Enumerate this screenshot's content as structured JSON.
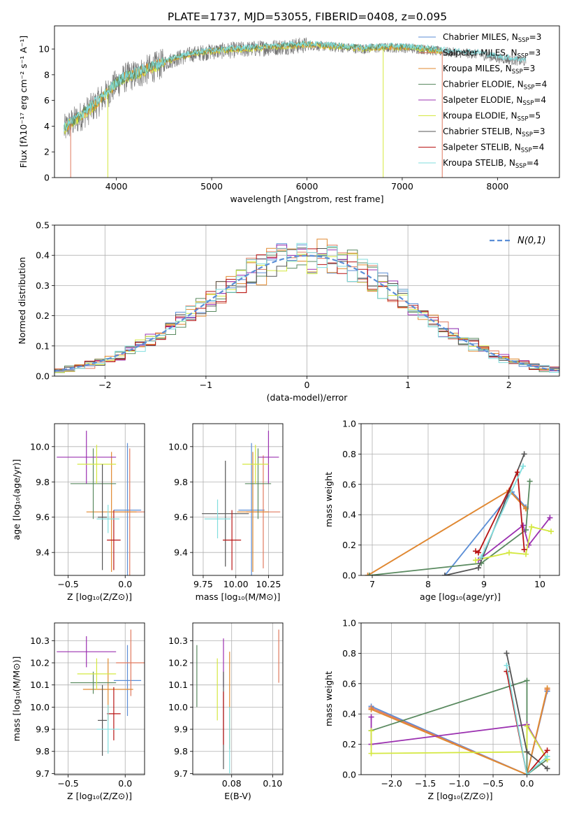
{
  "title": "PLATE=1737, MJD=53055, FIBERID=0408, z=0.095",
  "colors": {
    "Chabrier MILES": "#5b8ed6",
    "Salpeter MILES": "#e07a5f",
    "Kroupa MILES": "#e08a30",
    "Chabrier ELODIE": "#5a8a60",
    "Salpeter ELODIE": "#9b30b0",
    "Kroupa ELODIE": "#d4e840",
    "Chabrier STELIB": "#555555",
    "Salpeter STELIB": "#b81414",
    "Kroupa STELIB": "#80dede"
  },
  "legend_entries": [
    {
      "name": "Chabrier MILES",
      "label": "Chabrier MILES, N",
      "sub": "SSP",
      "n": "=3"
    },
    {
      "name": "Salpeter MILES",
      "label": "Salpeter MILES, N",
      "sub": "SSP",
      "n": "=3"
    },
    {
      "name": "Kroupa MILES",
      "label": "Kroupa MILES, N",
      "sub": "SSP",
      "n": "=3"
    },
    {
      "name": "Chabrier ELODIE",
      "label": "Chabrier ELODIE, N",
      "sub": "SSP",
      "n": "=4"
    },
    {
      "name": "Salpeter ELODIE",
      "label": "Salpeter ELODIE, N",
      "sub": "SSP",
      "n": "=4"
    },
    {
      "name": "Kroupa ELODIE",
      "label": "Kroupa ELODIE, N",
      "sub": "SSP",
      "n": "=5"
    },
    {
      "name": "Chabrier STELIB",
      "label": "Chabrier STELIB, N",
      "sub": "SSP",
      "n": "=3"
    },
    {
      "name": "Salpeter STELIB",
      "label": "Salpeter STELIB, N",
      "sub": "SSP",
      "n": "=4"
    },
    {
      "name": "Kroupa STELIB",
      "label": "Kroupa STELIB, N",
      "sub": "SSP",
      "n": "=4"
    }
  ],
  "chart_data": [
    {
      "id": "spectrum",
      "type": "line",
      "xlabel": "wavelength [Angstrom, rest frame]",
      "ylabel": "Flux [fλ10⁻¹⁷ erg cm⁻² s⁻¹ A⁻¹]",
      "xlim": [
        3350,
        8650
      ],
      "ylim": [
        0,
        11.8
      ],
      "xticks": [
        4000,
        5000,
        6000,
        7000,
        8000
      ],
      "yticks": [
        0,
        2,
        4,
        6,
        8,
        10
      ],
      "continuum_x": [
        3450,
        3500,
        3600,
        3700,
        3800,
        3900,
        4000,
        4100,
        4200,
        4400,
        4600,
        4800,
        5000,
        5200,
        5400,
        5600,
        5800,
        6000,
        6200,
        6400,
        6600,
        6800,
        7000,
        7200,
        7400,
        7600,
        7800,
        8000,
        8200,
        8300
      ],
      "continuum_y": [
        3.7,
        4.1,
        4.6,
        5.2,
        5.8,
        6.5,
        7.3,
        7.8,
        8.0,
        8.6,
        9.2,
        9.6,
        9.8,
        9.9,
        10.0,
        10.1,
        10.2,
        10.3,
        10.2,
        10.1,
        10.0,
        10.1,
        10.1,
        10.0,
        9.8,
        9.7,
        9.6,
        9.3,
        9.1,
        9.0
      ],
      "data_range": [
        3450,
        8300
      ],
      "spikes": [
        {
          "x": 3520,
          "y": 0.0,
          "series": "Salpeter MILES"
        },
        {
          "x": 3910,
          "y": 0.0,
          "series": "Kroupa ELODIE"
        },
        {
          "x": 6800,
          "y": 0.0,
          "series": "Kroupa ELODIE"
        },
        {
          "x": 7420,
          "y": 0.0,
          "series": "Salpeter MILES"
        }
      ],
      "legend": "right"
    },
    {
      "id": "residuals",
      "type": "histogram",
      "xlabel": "(data-model)/error",
      "ylabel": "Normed distribution",
      "xlim": [
        -2.5,
        2.5
      ],
      "ylim": [
        0,
        0.5
      ],
      "xticks": [
        -2,
        -1,
        0,
        1,
        2
      ],
      "yticks": [
        0,
        0.1,
        0.2,
        0.3,
        0.4,
        0.5
      ],
      "grid": true,
      "bin_width": 0.1,
      "reference_curve": {
        "label": "N(0,1)",
        "mean": 0,
        "sigma": 1,
        "color": "#5b8ed6"
      },
      "legend": "top-right"
    },
    {
      "id": "age_vs_Z",
      "type": "errorbar",
      "xlabel": "Z [log₁₀(Z/Z⊙)]",
      "ylabel": "age  [log₁₀(age/yr)]",
      "xlim": [
        -0.62,
        0.17
      ],
      "ylim": [
        9.27,
        10.13
      ],
      "xticks": [
        -0.5,
        0.0
      ],
      "yticks": [
        9.4,
        9.6,
        9.8,
        10.0
      ],
      "grid": true,
      "points": [
        {
          "series": "Chabrier MILES",
          "x": 0.02,
          "y": 9.64,
          "xerr": 0.12,
          "yerr": 0.38
        },
        {
          "series": "Salpeter MILES",
          "x": 0.04,
          "y": 9.63,
          "xerr": 0.13,
          "yerr": 0.36
        },
        {
          "series": "Kroupa MILES",
          "x": -0.12,
          "y": 9.63,
          "xerr": 0.22,
          "yerr": 0.34
        },
        {
          "series": "Chabrier ELODIE",
          "x": -0.28,
          "y": 9.79,
          "xerr": 0.2,
          "yerr": 0.2
        },
        {
          "series": "Salpeter ELODIE",
          "x": -0.34,
          "y": 9.94,
          "xerr": 0.26,
          "yerr": 0.15
        },
        {
          "series": "Kroupa ELODIE",
          "x": -0.25,
          "y": 9.9,
          "xerr": 0.17,
          "yerr": 0.11
        },
        {
          "series": "Chabrier STELIB",
          "x": -0.2,
          "y": 9.6,
          "xerr": 0.04,
          "yerr": 0.3
        },
        {
          "series": "Salpeter STELIB",
          "x": -0.1,
          "y": 9.47,
          "xerr": 0.06,
          "yerr": 0.17
        },
        {
          "series": "Kroupa STELIB",
          "x": -0.15,
          "y": 9.59,
          "xerr": 0.1,
          "yerr": 0.08
        }
      ]
    },
    {
      "id": "age_vs_mass",
      "type": "errorbar",
      "xlabel": "mass [log₁₀(M/M⊙)]",
      "ylabel": "",
      "xlim": [
        9.67,
        10.36
      ],
      "ylim": [
        9.27,
        10.13
      ],
      "xticks": [
        9.75,
        10.0,
        10.25
      ],
      "yticks": [
        9.4,
        9.6,
        9.8,
        10.0
      ],
      "grid": true,
      "points": [
        {
          "series": "Chabrier MILES",
          "x": 10.12,
          "y": 9.64,
          "xerr": 0.1,
          "yerr": 0.38
        },
        {
          "series": "Salpeter MILES",
          "x": 10.21,
          "y": 9.63,
          "xerr": 0.13,
          "yerr": 0.32
        },
        {
          "series": "Kroupa MILES",
          "x": 10.13,
          "y": 9.63,
          "xerr": 0.12,
          "yerr": 0.34
        },
        {
          "series": "Chabrier ELODIE",
          "x": 10.17,
          "y": 9.79,
          "xerr": 0.1,
          "yerr": 0.2
        },
        {
          "series": "Salpeter ELODIE",
          "x": 10.25,
          "y": 9.94,
          "xerr": 0.08,
          "yerr": 0.15
        },
        {
          "series": "Kroupa ELODIE",
          "x": 10.15,
          "y": 9.9,
          "xerr": 0.1,
          "yerr": 0.11
        },
        {
          "series": "Chabrier STELIB",
          "x": 9.92,
          "y": 9.62,
          "xerr": 0.18,
          "yerr": 0.3
        },
        {
          "series": "Salpeter STELIB",
          "x": 9.97,
          "y": 9.47,
          "xerr": 0.07,
          "yerr": 0.17
        },
        {
          "series": "Kroupa STELIB",
          "x": 9.86,
          "y": 9.59,
          "xerr": 0.1,
          "yerr": 0.11
        }
      ]
    },
    {
      "id": "weight_vs_age",
      "type": "line",
      "xlabel": "age  [log₁₀(age/yr)]",
      "ylabel": "mass weight",
      "xlim": [
        6.8,
        10.35
      ],
      "ylim": [
        0,
        1.0
      ],
      "xticks": [
        7,
        8,
        9,
        10
      ],
      "yticks": [
        0.0,
        0.2,
        0.4,
        0.6,
        0.8,
        1.0
      ],
      "grid": true,
      "series": [
        {
          "name": "Chabrier MILES",
          "x": [
            8.3,
            9.5,
            9.75
          ],
          "y": [
            0.0,
            0.55,
            0.45
          ]
        },
        {
          "name": "Salpeter MILES",
          "x": [
            6.92,
            9.45,
            9.75
          ],
          "y": [
            0.0,
            0.56,
            0.44
          ]
        },
        {
          "name": "Kroupa MILES",
          "x": [
            6.92,
            9.45,
            9.75
          ],
          "y": [
            0.0,
            0.56,
            0.44
          ]
        },
        {
          "name": "Chabrier ELODIE",
          "x": [
            6.95,
            8.95,
            9.75,
            9.82
          ],
          "y": [
            0.0,
            0.08,
            0.3,
            0.62
          ]
        },
        {
          "name": "Salpeter ELODIE",
          "x": [
            8.9,
            9.7,
            9.8,
            10.18
          ],
          "y": [
            0.1,
            0.33,
            0.2,
            0.38
          ]
        },
        {
          "name": "Kroupa ELODIE",
          "x": [
            8.85,
            9.45,
            9.75,
            9.85,
            10.2
          ],
          "y": [
            0.1,
            0.15,
            0.14,
            0.32,
            0.29
          ]
        },
        {
          "name": "Chabrier STELIB",
          "x": [
            8.3,
            8.9,
            9.72
          ],
          "y": [
            0.0,
            0.05,
            0.8
          ]
        },
        {
          "name": "Salpeter STELIB",
          "x": [
            8.85,
            8.9,
            9.6,
            9.72
          ],
          "y": [
            0.16,
            0.15,
            0.68,
            0.17
          ]
        },
        {
          "name": "Kroupa STELIB",
          "x": [
            8.95,
            9.7
          ],
          "y": [
            0.12,
            0.72
          ]
        }
      ]
    },
    {
      "id": "mass_vs_Z",
      "type": "errorbar",
      "xlabel": "Z [log₁₀(Z/Z⊙)]",
      "ylabel": "mass [log₁₀(M/M⊙)]",
      "xlim": [
        -0.62,
        0.17
      ],
      "ylim": [
        9.695,
        10.38
      ],
      "xticks": [
        -0.5,
        0.0
      ],
      "yticks": [
        9.7,
        9.8,
        9.9,
        10.0,
        10.1,
        10.2,
        10.3
      ],
      "grid": true,
      "points": [
        {
          "series": "Chabrier MILES",
          "x": 0.02,
          "y": 10.12,
          "xerr": 0.12,
          "yerr": 0.16
        },
        {
          "series": "Salpeter MILES",
          "x": 0.05,
          "y": 10.2,
          "xerr": 0.13,
          "yerr": 0.15
        },
        {
          "series": "Kroupa MILES",
          "x": -0.15,
          "y": 10.08,
          "xerr": 0.22,
          "yerr": 0.14
        },
        {
          "series": "Chabrier ELODIE",
          "x": -0.28,
          "y": 10.11,
          "xerr": 0.2,
          "yerr": 0.05
        },
        {
          "series": "Salpeter ELODIE",
          "x": -0.34,
          "y": 10.25,
          "xerr": 0.26,
          "yerr": 0.07
        },
        {
          "series": "Kroupa ELODIE",
          "x": -0.25,
          "y": 10.15,
          "xerr": 0.17,
          "yerr": 0.07
        },
        {
          "series": "Chabrier STELIB",
          "x": -0.2,
          "y": 9.94,
          "xerr": 0.04,
          "yerr": 0.16
        },
        {
          "series": "Salpeter STELIB",
          "x": -0.1,
          "y": 9.97,
          "xerr": 0.06,
          "yerr": 0.12
        },
        {
          "series": "Kroupa STELIB",
          "x": -0.15,
          "y": 9.9,
          "xerr": 0.1,
          "yerr": 0.11
        }
      ]
    },
    {
      "id": "mass_vs_ebv",
      "type": "errorbar",
      "xlabel": "E(B-V)",
      "ylabel": "",
      "xlim": [
        0.061,
        0.105
      ],
      "ylim": [
        9.695,
        10.38
      ],
      "xticks": [
        0.08,
        0.1
      ],
      "yticks": [
        9.7,
        9.8,
        9.9,
        10.0,
        10.1,
        10.2,
        10.3
      ],
      "grid": true,
      "points": [
        {
          "series": "Chabrier ELODIE",
          "x": 0.063,
          "y": 10.14,
          "yerr": 0.14
        },
        {
          "series": "Kroupa ELODIE",
          "x": 0.073,
          "y": 10.08,
          "yerr": 0.14
        },
        {
          "series": "Salpeter ELODIE",
          "x": 0.076,
          "y": 10.2,
          "yerr": 0.11
        },
        {
          "series": "Chabrier STELIB",
          "x": 0.076,
          "y": 9.94,
          "yerr": 0.22
        },
        {
          "series": "Salpeter STELIB",
          "x": 0.076,
          "y": 9.95,
          "yerr": 0.12
        },
        {
          "series": "Kroupa MILES",
          "x": 0.079,
          "y": 10.03,
          "yerr": 0.22
        },
        {
          "series": "Kroupa STELIB",
          "x": 0.079,
          "y": 9.85,
          "yerr": 0.15
        },
        {
          "series": "Salpeter MILES",
          "x": 0.103,
          "y": 10.23,
          "yerr": 0.12
        }
      ]
    },
    {
      "id": "weight_vs_Z",
      "type": "line",
      "xlabel": "Z [log₁₀(Z/Z⊙)]",
      "ylabel": "mass weight",
      "xlim": [
        -2.45,
        0.48
      ],
      "ylim": [
        0,
        1.0
      ],
      "xticks": [
        -2.0,
        -1.5,
        -1.0,
        -0.5,
        0.0
      ],
      "yticks": [
        0.0,
        0.2,
        0.4,
        0.6,
        0.8,
        1.0
      ],
      "grid": true,
      "series": [
        {
          "name": "Chabrier MILES",
          "x": [
            -2.3,
            0.0,
            0.3
          ],
          "y": [
            0.45,
            0.0,
            0.55
          ]
        },
        {
          "name": "Salpeter MILES",
          "x": [
            -2.3,
            0.0,
            0.3
          ],
          "y": [
            0.44,
            0.0,
            0.56
          ]
        },
        {
          "name": "Kroupa MILES",
          "x": [
            -2.3,
            0.0,
            0.3
          ],
          "y": [
            0.43,
            0.0,
            0.57
          ]
        },
        {
          "name": "Chabrier ELODIE",
          "x": [
            -2.3,
            0.0,
            0.0,
            0.3
          ],
          "y": [
            0.29,
            0.62,
            0.0,
            0.1
          ]
        },
        {
          "name": "Salpeter ELODIE",
          "x": [
            -2.3,
            -2.3,
            0.0,
            0.3
          ],
          "y": [
            0.38,
            0.2,
            0.33,
            0.1
          ]
        },
        {
          "name": "Kroupa ELODIE",
          "x": [
            -2.3,
            -2.3,
            0.0,
            0.0,
            0.3
          ],
          "y": [
            0.29,
            0.14,
            0.15,
            0.32,
            0.1
          ]
        },
        {
          "name": "Chabrier STELIB",
          "x": [
            -0.3,
            0.0,
            0.3
          ],
          "y": [
            0.8,
            0.15,
            0.04
          ]
        },
        {
          "name": "Salpeter STELIB",
          "x": [
            -0.3,
            0.0,
            0.3
          ],
          "y": [
            0.68,
            0.0,
            0.16
          ]
        },
        {
          "name": "Kroupa STELIB",
          "x": [
            -0.3,
            0.0,
            0.3
          ],
          "y": [
            0.72,
            0.0,
            0.12
          ]
        }
      ]
    }
  ]
}
